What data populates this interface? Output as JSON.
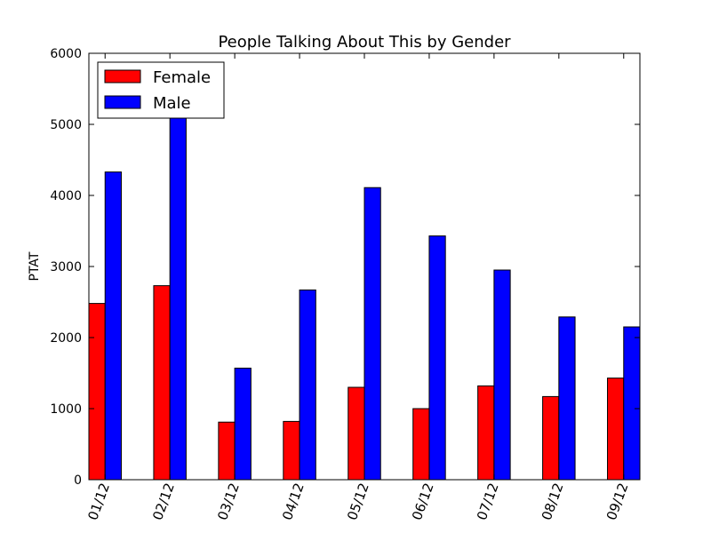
{
  "chart_data": {
    "type": "bar",
    "title": "People Talking About This by Gender",
    "xlabel": "",
    "ylabel": "PTAT",
    "categories": [
      "01/12",
      "02/12",
      "03/12",
      "04/12",
      "05/12",
      "06/12",
      "07/12",
      "08/12",
      "09/12"
    ],
    "series": [
      {
        "name": "Female",
        "color": "#ff0000",
        "values": [
          2480,
          2730,
          810,
          820,
          1300,
          1000,
          1320,
          1170,
          1430
        ]
      },
      {
        "name": "Male",
        "color": "#0000ff",
        "values": [
          4330,
          5130,
          1570,
          2670,
          4110,
          3430,
          2950,
          2290,
          2150
        ]
      }
    ],
    "ylim": [
      0,
      6000
    ],
    "yticks": [
      0,
      1000,
      2000,
      3000,
      4000,
      5000,
      6000
    ],
    "ytick_labels": [
      "0",
      "1000",
      "2000",
      "3000",
      "4000",
      "5000",
      "6000"
    ],
    "grid": false,
    "legend_position": "top-left",
    "xtick_rotation": 70
  }
}
